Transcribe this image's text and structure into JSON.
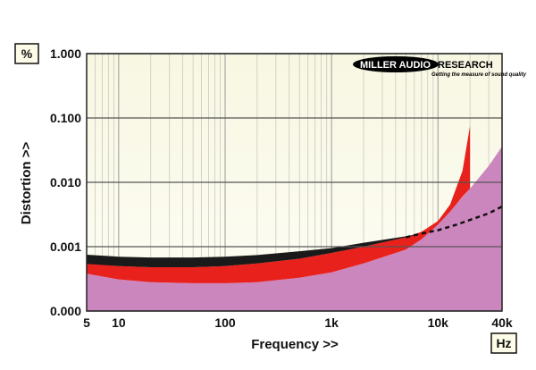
{
  "chart_data": {
    "type": "area",
    "xlabel": "Frequency >>",
    "ylabel": "Distortion >>",
    "x_unit": "Hz",
    "y_unit": "%",
    "xscale": "log",
    "yscale": "log",
    "xlim": [
      5,
      40000
    ],
    "ylim": [
      0.0001,
      1.0
    ],
    "x_ticks": [
      5,
      10,
      100,
      1000,
      10000,
      40000
    ],
    "x_tick_labels": [
      "5",
      "10",
      "100",
      "1k",
      "10k",
      "40k"
    ],
    "y_ticks": [
      0.0001,
      0.001,
      0.01,
      0.1,
      1.0
    ],
    "y_tick_labels": [
      "0.000",
      "0.001",
      "0.010",
      "0.100",
      "1.000"
    ],
    "grid": true,
    "logo": {
      "brand": "MILLER AUDIO RESEARCH",
      "tagline": "Getting the measure of sound quality"
    },
    "series": [
      {
        "fill": "#1a1a1a",
        "x": [
          5,
          10,
          20,
          50,
          100,
          200,
          500,
          1000,
          2000,
          5000,
          7000
        ],
        "y_upper": [
          0.00075,
          0.0007,
          0.00068,
          0.00068,
          0.0007,
          0.00074,
          0.00085,
          0.00095,
          0.00115,
          0.00145,
          0.0016
        ],
        "y_lower": [
          0.00054,
          0.0005,
          0.00048,
          0.00048,
          0.0005,
          0.00055,
          0.00065,
          0.0008,
          0.001,
          0.0014,
          0.0016
        ]
      },
      {
        "fill": "#e8211c",
        "x": [
          5,
          10,
          20,
          50,
          100,
          200,
          500,
          1000,
          2000,
          5000,
          7000,
          10000,
          13000,
          17000,
          20000
        ],
        "y_upper": [
          0.00055,
          0.0005,
          0.00048,
          0.00048,
          0.0005,
          0.00055,
          0.00065,
          0.0008,
          0.001,
          0.0014,
          0.0017,
          0.0025,
          0.0045,
          0.015,
          0.075
        ],
        "y_lower": [
          0.00038,
          0.00031,
          0.00028,
          0.00027,
          0.00027,
          0.00028,
          0.00033,
          0.0004,
          0.00055,
          0.0009,
          0.0013,
          0.0022,
          0.0035,
          0.006,
          0.008
        ]
      },
      {
        "fill": "#cc86be",
        "x": [
          5,
          10,
          20,
          50,
          100,
          200,
          500,
          1000,
          2000,
          5000,
          7000,
          10000,
          20000,
          30000,
          40000
        ],
        "y": [
          0.00038,
          0.00031,
          0.00028,
          0.00027,
          0.00027,
          0.00028,
          0.00033,
          0.0004,
          0.00055,
          0.0009,
          0.0013,
          0.0022,
          0.008,
          0.018,
          0.036
        ]
      },
      {
        "style": "dashed",
        "stroke": "#111111",
        "x": [
          5000,
          7000,
          10000,
          15000,
          20000,
          30000,
          40000
        ],
        "y": [
          0.0014,
          0.0016,
          0.0018,
          0.0022,
          0.0026,
          0.0033,
          0.0042
        ]
      }
    ]
  }
}
